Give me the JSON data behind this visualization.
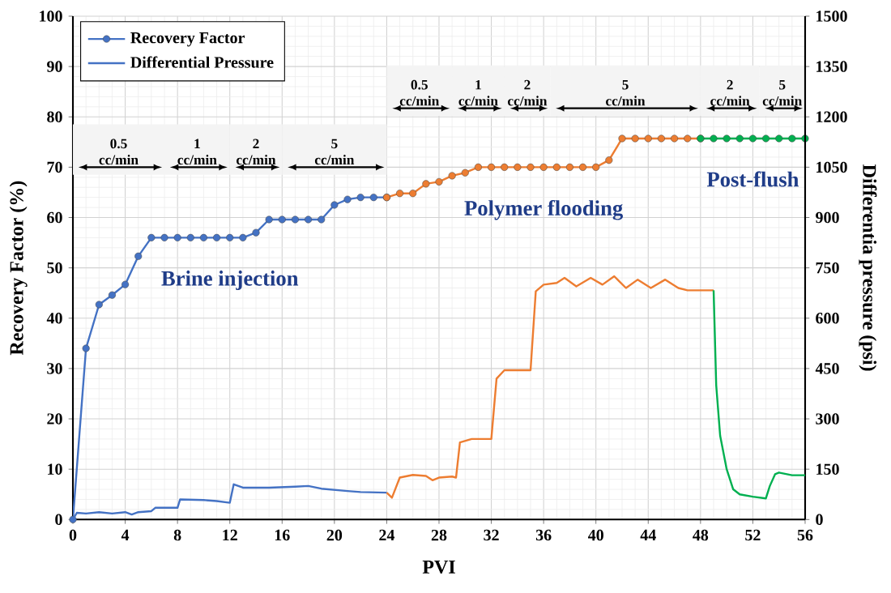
{
  "chart_data": {
    "type": "line",
    "xlabel": "PVI",
    "ylabel": "Recovery Factor (%)",
    "y2label": "Differentia pressure (psi)",
    "xlim": [
      0,
      56
    ],
    "xticks": [
      0,
      4,
      8,
      12,
      16,
      20,
      24,
      28,
      32,
      36,
      40,
      44,
      48,
      52,
      56
    ],
    "ylim": [
      0,
      100
    ],
    "yticks": [
      0,
      10,
      20,
      30,
      40,
      50,
      60,
      70,
      80,
      90,
      100
    ],
    "y2lim": [
      0,
      1500
    ],
    "y2ticks": [
      0,
      150,
      300,
      450,
      600,
      750,
      900,
      1050,
      1200,
      1350,
      1500
    ],
    "grid": true,
    "legend": "top left",
    "series": [
      {
        "name": "Recovery Factor",
        "color": "#4472c4",
        "marker": "circle",
        "x": [
          0,
          1,
          2,
          3,
          4,
          5,
          6,
          7,
          8,
          9,
          10,
          11,
          12,
          13,
          14,
          15,
          16,
          17,
          18,
          19,
          20,
          21,
          22,
          23,
          24
        ],
        "values": [
          0,
          34,
          42.7,
          44.6,
          46.7,
          52.3,
          56,
          56,
          56,
          56,
          56,
          56,
          56,
          56,
          57,
          59.6,
          59.6,
          59.6,
          59.6,
          59.6,
          62.5,
          63.6,
          64,
          64,
          64
        ]
      },
      {
        "color": "#ed7d31",
        "marker": "circle",
        "x": [
          24,
          25,
          26,
          27,
          28,
          29,
          30,
          31,
          32,
          33,
          34,
          35,
          36,
          37,
          38,
          39,
          40,
          41,
          42,
          43,
          44,
          45,
          46,
          47,
          48
        ],
        "values": [
          64,
          64.8,
          64.8,
          66.7,
          67.1,
          68.3,
          68.9,
          70,
          70,
          70,
          70,
          70,
          70,
          70,
          70,
          70,
          70,
          71.4,
          75.7,
          75.7,
          75.7,
          75.7,
          75.7,
          75.7,
          75.7
        ]
      },
      {
        "color": "#00b050",
        "marker": "circle",
        "x": [
          48,
          49,
          50,
          51,
          52,
          53,
          54,
          55,
          56
        ],
        "values": [
          75.7,
          75.7,
          75.7,
          75.7,
          75.7,
          75.7,
          75.7,
          75.7,
          75.7
        ]
      },
      {
        "name": "Differential Pressure",
        "color": "#4472c4",
        "axis": "y2",
        "marker": "none",
        "x": [
          0,
          0.3,
          1,
          2,
          3,
          4,
          4.5,
          5,
          6,
          6.3,
          8,
          8.2,
          10,
          11,
          12,
          12.3,
          13,
          15,
          17,
          18,
          19,
          21,
          22,
          24
        ],
        "values": [
          0,
          20,
          18,
          22,
          18,
          22,
          15,
          22,
          25,
          35,
          35,
          60,
          58,
          55,
          50,
          105,
          95,
          95,
          98,
          100,
          92,
          85,
          82,
          80
        ]
      },
      {
        "color": "#ed7d31",
        "axis": "y2",
        "marker": "none",
        "x": [
          24,
          24.4,
          25,
          26,
          27,
          27.5,
          28,
          29,
          29.3,
          29.6,
          30.5,
          32,
          32.4,
          33,
          34,
          35,
          35.4,
          36,
          37,
          37.6,
          38.5,
          39.6,
          40.5,
          41.4,
          42.3,
          43.2,
          44.2,
          45.3,
          46.3,
          47,
          49
        ],
        "values": [
          80,
          65,
          125,
          133,
          130,
          117,
          125,
          128,
          125,
          230,
          240,
          240,
          420,
          445,
          445,
          445,
          680,
          700,
          705,
          720,
          695,
          720,
          700,
          725,
          690,
          715,
          690,
          715,
          690,
          683,
          683
        ]
      },
      {
        "color": "#00b050",
        "axis": "y2",
        "marker": "none",
        "x": [
          49,
          49.2,
          49.5,
          50,
          50.5,
          51,
          52,
          53,
          53.3,
          53.7,
          54,
          55,
          56
        ],
        "values": [
          683,
          400,
          250,
          150,
          90,
          75,
          68,
          63,
          100,
          135,
          140,
          132,
          132
        ]
      }
    ],
    "bands": [
      {
        "axis": "x",
        "from": 0,
        "to": 7,
        "label": "0.5 cc/min",
        "color": "#f4f4f4"
      },
      {
        "axis": "x",
        "from": 7,
        "to": 12,
        "label": "1 cc/min",
        "color": "#f4f4f4"
      },
      {
        "axis": "x",
        "from": 12,
        "to": 16,
        "label": "2 cc/min",
        "color": "#f4f4f4"
      },
      {
        "axis": "x",
        "from": 16,
        "to": 24,
        "label": "5 cc/min",
        "color": "#f4f4f4"
      },
      {
        "axis": "x",
        "from": 24,
        "to": 29,
        "label": "0.5 cc/min",
        "color": "#f4f4f4"
      },
      {
        "axis": "x",
        "from": 29,
        "to": 33,
        "label": "1 cc/min",
        "color": "#f4f4f4"
      },
      {
        "axis": "x",
        "from": 33,
        "to": 36.5,
        "label": "2 cc/min",
        "color": "#f4f4f4"
      },
      {
        "axis": "x",
        "from": 36.5,
        "to": 48,
        "label": "5 cc/min",
        "color": "#f4f4f4"
      },
      {
        "axis": "x",
        "from": 48,
        "to": 52.5,
        "label": "2 cc/min",
        "color": "#f4f4f4"
      },
      {
        "axis": "x",
        "from": 52.5,
        "to": 56,
        "label": "5 cc/min",
        "color": "#f4f4f4"
      }
    ],
    "annotations": [
      "Brine injection",
      "Polymer flooding",
      "Post-flush"
    ]
  }
}
